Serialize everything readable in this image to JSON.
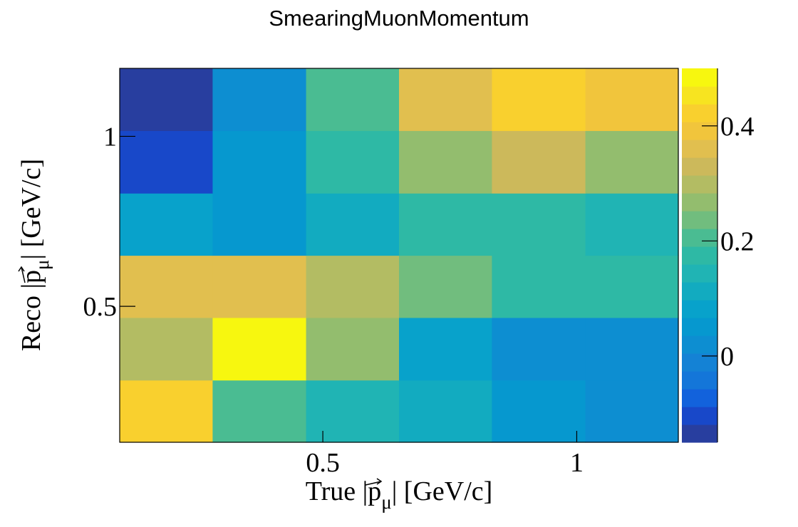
{
  "chart_data": {
    "type": "heatmap",
    "title": "SmearingMuonMomentum",
    "xlabel": {
      "pre": "True |",
      "var": "p",
      "sub": "μ",
      "post": "| [GeV/c]"
    },
    "ylabel": {
      "pre": "Reco |",
      "var": "p",
      "sub": "μ",
      "post": "| [GeV/c]"
    },
    "x_bins": [
      0.1,
      0.283,
      0.467,
      0.65,
      0.833,
      1.017,
      1.2
    ],
    "y_bins": [
      0.1,
      0.283,
      0.467,
      0.65,
      0.833,
      1.017,
      1.2
    ],
    "x_ticks": [
      {
        "value": 0.5,
        "label": "0.5"
      },
      {
        "value": 1,
        "label": "1"
      }
    ],
    "y_ticks": [
      {
        "value": 0.5,
        "label": "0.5"
      },
      {
        "value": 1,
        "label": "1"
      }
    ],
    "z": [
      [
        0.42,
        0.22,
        0.15,
        0.11,
        0.05,
        0.03
      ],
      [
        0.31,
        0.49,
        0.28,
        0.08,
        0.02,
        0.02
      ],
      [
        0.35,
        0.35,
        0.31,
        0.24,
        0.18,
        0.16
      ],
      [
        0.08,
        0.05,
        0.1,
        0.19,
        0.19,
        0.15
      ],
      [
        -0.09,
        0.06,
        0.18,
        0.28,
        0.34,
        0.28
      ],
      [
        -0.15,
        0.03,
        0.22,
        0.37,
        0.43,
        0.38
      ]
    ],
    "zlim": [
      -0.15,
      0.5
    ],
    "z_ticks": [
      {
        "value": 0,
        "label": "0"
      },
      {
        "value": 0.2,
        "label": "0.2"
      },
      {
        "value": 0.4,
        "label": "0.4"
      }
    ],
    "colormap": [
      "#283e9f",
      "#1848c9",
      "#1262dc",
      "#1476d9",
      "#1482d5",
      "#0d8ed1",
      "#0698cf",
      "#08a2cb",
      "#12abc0",
      "#20b4b4",
      "#2eb9a5",
      "#4abc92",
      "#71bd7e",
      "#93bd6e",
      "#b3bc63",
      "#ccb95b",
      "#e1bf4f",
      "#f1c53c",
      "#f9d02e",
      "#f7e420",
      "#f7f70f"
    ]
  }
}
